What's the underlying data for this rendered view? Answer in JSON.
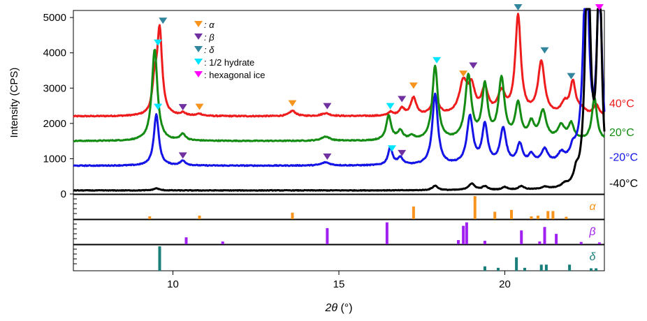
{
  "chart_data": {
    "type": "line",
    "xlabel_italic": "2θ",
    "xlabel_unit": " (°)",
    "ylabel": "Intensity (CPS)",
    "xlim": [
      7,
      23
    ],
    "ylim": [
      0,
      5200
    ],
    "x_ticks": [
      10,
      15,
      20
    ],
    "y_ticks": [
      0,
      1000,
      2000,
      3000,
      4000,
      5000
    ],
    "grid": false,
    "legend_position": "top-center",
    "legend": [
      {
        "marker_color": "#f7941d",
        "text": ": α",
        "italic": true
      },
      {
        "marker_color": "#7030a0",
        "text": ": β",
        "italic": true
      },
      {
        "marker_color": "#31859c",
        "text": ": δ",
        "italic": true
      },
      {
        "marker_color": "#00e5ff",
        "text": ": 1/2 hydrate",
        "italic": false
      },
      {
        "marker_color": "#ff00ff",
        "text": ": hexagonal ice",
        "italic": false
      }
    ],
    "series": [
      {
        "name": "40°C",
        "color": "#ee1c1c",
        "label_color": "#ee1c1c",
        "baseline": 2200,
        "noise": 30,
        "label_y": 2580,
        "peaks": [
          [
            9.45,
            800,
            0.08
          ],
          [
            9.6,
            2400,
            0.09
          ],
          [
            10.3,
            80,
            0.1
          ],
          [
            10.8,
            60,
            0.1
          ],
          [
            13.6,
            150,
            0.12
          ],
          [
            14.6,
            80,
            0.15
          ],
          [
            16.55,
            100,
            0.08
          ],
          [
            16.9,
            200,
            0.1
          ],
          [
            17.25,
            500,
            0.1
          ],
          [
            17.9,
            500,
            0.12
          ],
          [
            18.75,
            900,
            0.15
          ],
          [
            19.0,
            700,
            0.12
          ],
          [
            19.4,
            700,
            0.12
          ],
          [
            19.9,
            600,
            0.14
          ],
          [
            20.4,
            2800,
            0.1
          ],
          [
            21.1,
            1500,
            0.12
          ],
          [
            21.8,
            300,
            0.12
          ],
          [
            22.05,
            900,
            0.1
          ],
          [
            22.3,
            150,
            0.15
          ],
          [
            22.75,
            300,
            0.1
          ]
        ]
      },
      {
        "name": "20°C",
        "color": "#148c14",
        "label_color": "#148c14",
        "baseline": 1500,
        "noise": 25,
        "label_y": 1760,
        "peaks": [
          [
            9.45,
            2600,
            0.1
          ],
          [
            10.3,
            180,
            0.1
          ],
          [
            14.6,
            120,
            0.15
          ],
          [
            16.5,
            700,
            0.09
          ],
          [
            16.85,
            250,
            0.1
          ],
          [
            17.2,
            100,
            0.1
          ],
          [
            17.9,
            2100,
            0.1
          ],
          [
            18.9,
            1800,
            0.11
          ],
          [
            19.4,
            1500,
            0.1
          ],
          [
            19.9,
            1700,
            0.11
          ],
          [
            20.4,
            1000,
            0.1
          ],
          [
            20.8,
            450,
            0.1
          ],
          [
            21.15,
            800,
            0.12
          ],
          [
            21.7,
            400,
            0.12
          ],
          [
            22.0,
            450,
            0.1
          ],
          [
            22.7,
            1200,
            0.09
          ]
        ]
      },
      {
        "name": "-20°C",
        "color": "#1414e6",
        "label_color": "#1414e6",
        "baseline": 800,
        "noise": 25,
        "label_y": 1060,
        "peaks": [
          [
            9.5,
            1450,
            0.09
          ],
          [
            10.3,
            130,
            0.1
          ],
          [
            14.6,
            90,
            0.15
          ],
          [
            16.55,
            500,
            0.08
          ],
          [
            16.85,
            200,
            0.1
          ],
          [
            17.9,
            2000,
            0.1
          ],
          [
            18.95,
            1350,
            0.11
          ],
          [
            19.4,
            1100,
            0.1
          ],
          [
            19.95,
            1000,
            0.11
          ],
          [
            20.45,
            550,
            0.1
          ],
          [
            20.8,
            250,
            0.1
          ],
          [
            21.2,
            400,
            0.12
          ],
          [
            21.7,
            250,
            0.12
          ],
          [
            22.05,
            300,
            0.1
          ],
          [
            22.45,
            6000,
            0.1
          ],
          [
            22.85,
            5000,
            0.09
          ]
        ]
      },
      {
        "name": "-40°C",
        "color": "#000000",
        "label_color": "#000000",
        "baseline": 100,
        "noise": 18,
        "label_y": 320,
        "peaks": [
          [
            9.5,
            60,
            0.1
          ],
          [
            17.9,
            130,
            0.1
          ],
          [
            19.0,
            180,
            0.12
          ],
          [
            19.4,
            100,
            0.1
          ],
          [
            20.0,
            80,
            0.1
          ],
          [
            20.5,
            100,
            0.1
          ],
          [
            21.2,
            60,
            0.12
          ],
          [
            21.8,
            80,
            0.1
          ],
          [
            22.15,
            300,
            0.08
          ],
          [
            22.5,
            7000,
            0.09
          ],
          [
            22.85,
            6500,
            0.08
          ]
        ]
      }
    ],
    "markers": [
      {
        "x": 9.7,
        "y": 4820,
        "phase": "δ"
      },
      {
        "x": 9.55,
        "y": 4200,
        "phase": "1/2 hydrate"
      },
      {
        "x": 9.55,
        "y": 2380,
        "phase": "1/2 hydrate"
      },
      {
        "x": 10.3,
        "y": 2370,
        "phase": "β"
      },
      {
        "x": 10.8,
        "y": 2380,
        "phase": "α"
      },
      {
        "x": 10.3,
        "y": 1000,
        "phase": "β"
      },
      {
        "x": 13.6,
        "y": 2480,
        "phase": "α"
      },
      {
        "x": 14.65,
        "y": 2400,
        "phase": "β"
      },
      {
        "x": 14.65,
        "y": 970,
        "phase": "β"
      },
      {
        "x": 16.55,
        "y": 2400,
        "phase": "1/2 hydrate"
      },
      {
        "x": 16.9,
        "y": 2600,
        "phase": "β"
      },
      {
        "x": 16.6,
        "y": 1200,
        "phase": "1/2 hydrate"
      },
      {
        "x": 16.9,
        "y": 1070,
        "phase": "β"
      },
      {
        "x": 17.25,
        "y": 2980,
        "phase": "α"
      },
      {
        "x": 17.95,
        "y": 3700,
        "phase": "1/2 hydrate"
      },
      {
        "x": 18.75,
        "y": 3320,
        "phase": "α"
      },
      {
        "x": 19.05,
        "y": 3550,
        "phase": "β"
      },
      {
        "x": 20.4,
        "y": 5200,
        "phase": "δ"
      },
      {
        "x": 21.2,
        "y": 3980,
        "phase": "δ"
      },
      {
        "x": 22.0,
        "y": 3250,
        "phase": "δ"
      },
      {
        "x": 22.85,
        "y": 5200,
        "phase": "hexagonal ice"
      }
    ],
    "phase_colors": {
      "α": "#f7941d",
      "β": "#7030a0",
      "δ": "#31859c",
      "1/2 hydrate": "#00e5ff",
      "hexagonal ice": "#ff00ff"
    },
    "reference_panels": [
      {
        "label": "α",
        "color": "#f7941d",
        "sticks": [
          [
            9.3,
            0.12
          ],
          [
            10.8,
            0.15
          ],
          [
            13.6,
            0.28
          ],
          [
            17.25,
            0.55
          ],
          [
            19.1,
            1.0
          ],
          [
            19.7,
            0.32
          ],
          [
            20.2,
            0.4
          ],
          [
            20.8,
            0.12
          ],
          [
            21.0,
            0.15
          ],
          [
            21.3,
            0.35
          ],
          [
            21.45,
            0.35
          ],
          [
            21.85,
            0.1
          ]
        ]
      },
      {
        "label": "β",
        "color": "#a020f0",
        "sticks": [
          [
            10.4,
            0.3
          ],
          [
            11.5,
            0.12
          ],
          [
            14.65,
            0.7
          ],
          [
            16.45,
            0.95
          ],
          [
            18.6,
            0.18
          ],
          [
            18.75,
            0.8
          ],
          [
            18.85,
            0.95
          ],
          [
            19.4,
            0.15
          ],
          [
            20.5,
            0.6
          ],
          [
            21.05,
            0.12
          ],
          [
            21.2,
            0.75
          ],
          [
            21.55,
            0.45
          ],
          [
            22.3,
            0.1
          ],
          [
            22.85,
            0.08
          ]
        ]
      },
      {
        "label": "δ",
        "color": "#1a7f7a",
        "sticks": [
          [
            9.6,
            1.0
          ],
          [
            19.4,
            0.18
          ],
          [
            19.8,
            0.12
          ],
          [
            20.35,
            0.55
          ],
          [
            20.6,
            0.12
          ],
          [
            21.1,
            0.25
          ],
          [
            21.25,
            0.25
          ],
          [
            21.95,
            0.25
          ],
          [
            22.6,
            0.1
          ],
          [
            22.75,
            0.1
          ]
        ]
      }
    ]
  }
}
